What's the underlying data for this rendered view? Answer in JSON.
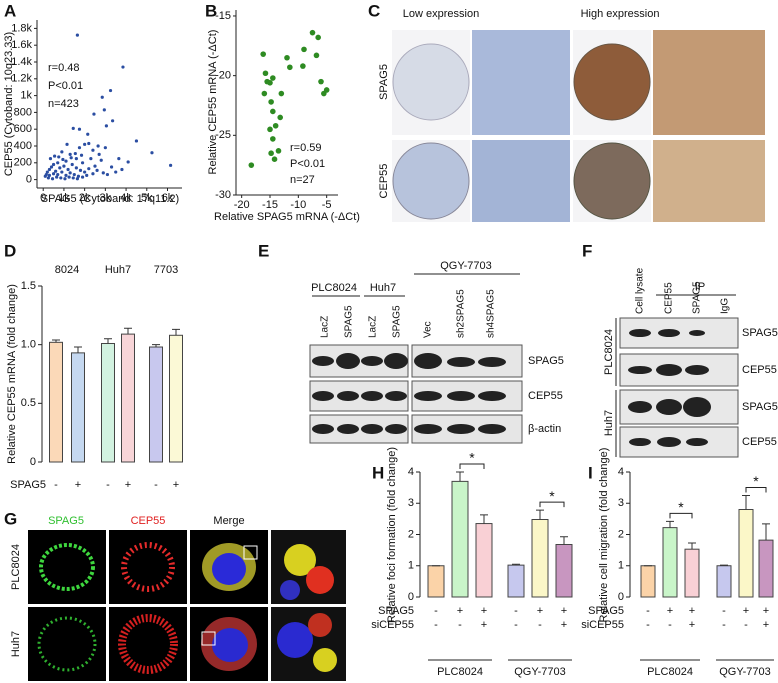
{
  "chart_data": [
    {
      "label": "A",
      "type": "scatter",
      "x_label": "SPAG5 (Cytoband: 17q11.2)",
      "y_label": "CEP55 (Cytoband: 10q23.33)",
      "annotations": [
        "r=0.48",
        "P<0.01",
        "n=423"
      ],
      "color": "#2b4ea2",
      "x": [
        1650,
        3850,
        3250,
        2850,
        2950,
        2450,
        3350,
        1450,
        3050,
        2150,
        1750,
        2200,
        4500,
        6150,
        5250,
        4100,
        3650,
        2000,
        1150,
        1750,
        2650,
        900,
        1300,
        2400,
        3000,
        1600,
        2800,
        3300,
        2500,
        1900,
        1100,
        700,
        500,
        300,
        200,
        100,
        150,
        400,
        600,
        800,
        1000,
        1200,
        1400,
        1600,
        1800,
        2000,
        2200,
        2400,
        2600,
        2900,
        3100,
        3500,
        300,
        500,
        700,
        900,
        1100,
        1300,
        1500,
        1700,
        1900,
        2100,
        250,
        450,
        650,
        850,
        1050,
        1250,
        1450,
        1650,
        350,
        550,
        750,
        950,
        1350,
        1550,
        1850,
        2300,
        2700,
        3800
      ],
      "y": [
        1720,
        1340,
        1060,
        980,
        830,
        780,
        700,
        610,
        640,
        540,
        600,
        430,
        460,
        170,
        320,
        210,
        250,
        420,
        420,
        380,
        400,
        330,
        300,
        350,
        380,
        250,
        230,
        150,
        160,
        200,
        220,
        200,
        180,
        120,
        90,
        40,
        60,
        150,
        100,
        140,
        160,
        120,
        180,
        140,
        110,
        90,
        130,
        70,
        110,
        80,
        60,
        90,
        50,
        70,
        60,
        90,
        50,
        80,
        60,
        40,
        30,
        50,
        20,
        10,
        30,
        20,
        10,
        30,
        20,
        10,
        250,
        280,
        270,
        240,
        260,
        310,
        290,
        250,
        300,
        120
      ],
      "xlim": [
        -300,
        6700
      ],
      "ylim": [
        -100,
        1900
      ],
      "xticks": [
        0,
        {
          "value": 1000,
          "label": "1k"
        },
        {
          "value": 2000,
          "label": "2k"
        },
        {
          "value": 3000,
          "label": "3k"
        },
        {
          "value": 4000,
          "label": "4k"
        },
        {
          "value": 5000,
          "label": "5k"
        },
        {
          "value": 6000,
          "label": "6k"
        }
      ],
      "yticks": [
        0,
        200,
        400,
        600,
        800,
        {
          "value": 1000,
          "label": "1k"
        },
        {
          "value": 1200,
          "label": "1.2k"
        },
        {
          "value": 1400,
          "label": "1.4k"
        },
        {
          "value": 1600,
          "label": "1.6k"
        },
        {
          "value": 1800,
          "label": "1.8k"
        }
      ]
    },
    {
      "label": "B",
      "type": "scatter",
      "x_label": "Relative SPAG5 mRNA (-ΔCt)",
      "y_label": "Relative CEP55 mRNA (-ΔCt)",
      "annotations": [
        "r=0.59",
        "P<0.01",
        "n=27"
      ],
      "color": "#2e8b22",
      "x": [
        -16.2,
        -15.8,
        -16,
        -15.5,
        -15,
        -14.5,
        -14.8,
        -14.5,
        -15,
        -14,
        -14.5,
        -14.8,
        -13.5,
        -14.2,
        -18.3,
        -13.2,
        -13,
        -12,
        -11.5,
        -9.2,
        -9,
        -7.5,
        -6.8,
        -6.5,
        -6,
        -5.5,
        -5
      ],
      "y": [
        -18.2,
        -19.8,
        -21.5,
        -20.5,
        -20.6,
        -20.2,
        -22.2,
        -23,
        -24.5,
        -24.2,
        -25.3,
        -26.5,
        -26.3,
        -27,
        -27.5,
        -23.5,
        -21.5,
        -18.5,
        -19.3,
        -19.2,
        -17.8,
        -16.4,
        -18.3,
        -16.8,
        -20.5,
        -21.5,
        -21.2
      ],
      "xlim": [
        -21,
        -3
      ],
      "ylim": [
        -30,
        -14.5
      ],
      "xticks": [
        -20,
        -15,
        -10,
        -5
      ],
      "yticks": [
        -30,
        -25,
        -20,
        -15
      ]
    },
    {
      "label": "D",
      "type": "bar",
      "y_label": "Relative CEP55 mRNA (fold change)",
      "groups": [
        "8024",
        "Huh7",
        "7703"
      ],
      "rows": [
        {
          "label": "SPAG5",
          "signs": [
            "-",
            "+",
            "-",
            "+",
            "-",
            "+"
          ]
        }
      ],
      "values": [
        1.02,
        0.93,
        1.01,
        1.09,
        0.98,
        1.08
      ],
      "errors": [
        0.02,
        0.05,
        0.04,
        0.05,
        0.02,
        0.05
      ],
      "colors": [
        "#fbd9b8",
        "#c5d8f0",
        "#d2f2e0",
        "#f8d5d8",
        "#c8c8ee",
        "#fbf9d6"
      ],
      "ylim": [
        0,
        1.5
      ],
      "yticks": [
        0,
        0.5,
        {
          "value": 1,
          "label": "1.0"
        },
        1.5
      ]
    },
    {
      "label": "H",
      "type": "bar",
      "y_label": "Relative foci formation (fold change)",
      "groups": [
        "PLC8024",
        "QGY-7703"
      ],
      "rows": [
        {
          "label": "SPAG5",
          "signs": [
            "-",
            "+",
            "+",
            "-",
            "+",
            "+"
          ]
        },
        {
          "label": "siCEP55",
          "signs": [
            "-",
            "-",
            "+",
            "-",
            "-",
            "+"
          ]
        }
      ],
      "values": [
        1,
        3.7,
        2.35,
        1.02,
        2.48,
        1.68
      ],
      "errors": [
        0,
        0.3,
        0.28,
        0.03,
        0.3,
        0.25
      ],
      "colors": [
        "#fbd3a8",
        "#c9f5c9",
        "#f9d0d5",
        "#c6c8ee",
        "#fbf7c8",
        "#c896c0"
      ],
      "significance": [
        "*",
        "*"
      ],
      "ylim": [
        0,
        4
      ],
      "yticks": [
        0,
        1,
        2,
        3,
        4
      ]
    },
    {
      "label": "I",
      "type": "bar",
      "y_label": "Relative cell migration (fold change)",
      "groups": [
        "PLC8024",
        "QGY-7703"
      ],
      "rows": [
        {
          "label": "SPAG5",
          "signs": [
            "-",
            "+",
            "+",
            "-",
            "+",
            "+"
          ]
        },
        {
          "label": "siCEP55",
          "signs": [
            "-",
            "-",
            "+",
            "-",
            "-",
            "+"
          ]
        }
      ],
      "values": [
        1,
        2.22,
        1.53,
        1,
        2.8,
        1.82
      ],
      "errors": [
        0,
        0.2,
        0.2,
        0.02,
        0.45,
        0.52
      ],
      "colors": [
        "#fbd3a8",
        "#c9f5c9",
        "#f9d0d5",
        "#c6c8ee",
        "#fbf7c8",
        "#c896c0"
      ],
      "significance": [
        "*",
        "*"
      ],
      "ylim": [
        0,
        4
      ],
      "yticks": [
        0,
        1,
        2,
        3,
        4
      ]
    }
  ],
  "panel_c": {
    "label": "C",
    "columns": [
      "Low expression",
      "High expression"
    ],
    "rows": [
      "SPAG5",
      "CEP55"
    ]
  },
  "panel_e": {
    "label": "E",
    "groups": [
      "PLC8024",
      "Huh7",
      "QGY-7703"
    ],
    "lanes": [
      "LacZ",
      "SPAG5",
      "LacZ",
      "SPAG5",
      "Vec",
      "sh2SPAG5",
      "sh4SPAG5"
    ],
    "blots": [
      "SPAG5",
      "CEP55",
      "β-actin"
    ]
  },
  "panel_f": {
    "label": "F",
    "ip": "IP",
    "lanes": [
      "Cell lysate",
      "CEP55",
      "SPAG5",
      "IgG"
    ],
    "cell_lines": [
      "PLC8024",
      "Huh7"
    ],
    "blots": [
      "SPAG5",
      "CEP55",
      "SPAG5",
      "CEP55"
    ]
  },
  "panel_g": {
    "label": "G",
    "columns": [
      "SPAG5",
      "CEP55",
      "Merge"
    ],
    "rows": [
      "PLC8024",
      "Huh7"
    ]
  }
}
